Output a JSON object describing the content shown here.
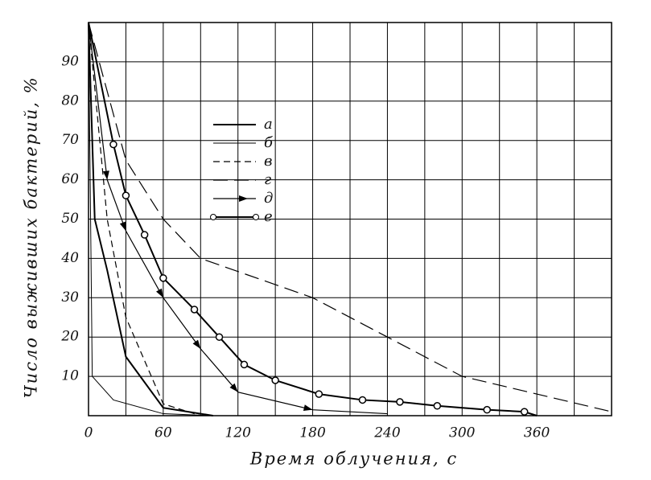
{
  "chart_data": {
    "type": "line",
    "x_label": "Время облучения, с",
    "y_label": "Число выживших бактерий, %",
    "xlim": [
      0,
      420
    ],
    "ylim": [
      0,
      100
    ],
    "xticks": [
      0,
      60,
      120,
      180,
      240,
      300,
      360
    ],
    "yticks": [
      10,
      20,
      30,
      40,
      50,
      60,
      70,
      80,
      90
    ],
    "xgrid": [
      30,
      90,
      150,
      210,
      270,
      330,
      390
    ],
    "grid": true,
    "series": [
      {
        "name": "а",
        "color": "#000",
        "style": "solid",
        "width": 2,
        "marker": "none",
        "x": [
          0,
          5,
          15,
          30,
          60,
          100
        ],
        "values": [
          100,
          50,
          37,
          15,
          2,
          0
        ]
      },
      {
        "name": "б",
        "color": "#000",
        "style": "thin",
        "width": 1,
        "marker": "none",
        "x": [
          0,
          3,
          20,
          60,
          100
        ],
        "values": [
          100,
          10,
          4,
          0.5,
          0
        ]
      },
      {
        "name": "в",
        "color": "#000",
        "style": "dashed",
        "width": 1.2,
        "marker": "none",
        "x": [
          0,
          15,
          30,
          60,
          90
        ],
        "values": [
          100,
          50,
          25,
          3,
          0
        ]
      },
      {
        "name": "г",
        "color": "#000",
        "style": "longdash",
        "width": 1.2,
        "marker": "none",
        "x": [
          0,
          30,
          60,
          90,
          180,
          240,
          300,
          420
        ],
        "values": [
          100,
          65,
          50,
          40,
          30,
          20,
          10,
          1
        ]
      },
      {
        "name": "д",
        "color": "#000",
        "style": "solid",
        "width": 1.2,
        "marker": "arrow",
        "x": [
          0,
          15,
          30,
          60,
          90,
          120,
          180,
          240
        ],
        "values": [
          100,
          60,
          47,
          30,
          17,
          6,
          1.5,
          0.5
        ]
      },
      {
        "name": "е",
        "color": "#000",
        "style": "solid",
        "width": 2,
        "marker": "circle",
        "x": [
          0,
          20,
          30,
          45,
          60,
          85,
          105,
          125,
          150,
          185,
          220,
          250,
          280,
          320,
          350,
          360
        ],
        "values": [
          100,
          69,
          56,
          46,
          35,
          27,
          20,
          13,
          9,
          5.5,
          4,
          3.5,
          2.5,
          1.5,
          1,
          0
        ]
      }
    ]
  }
}
